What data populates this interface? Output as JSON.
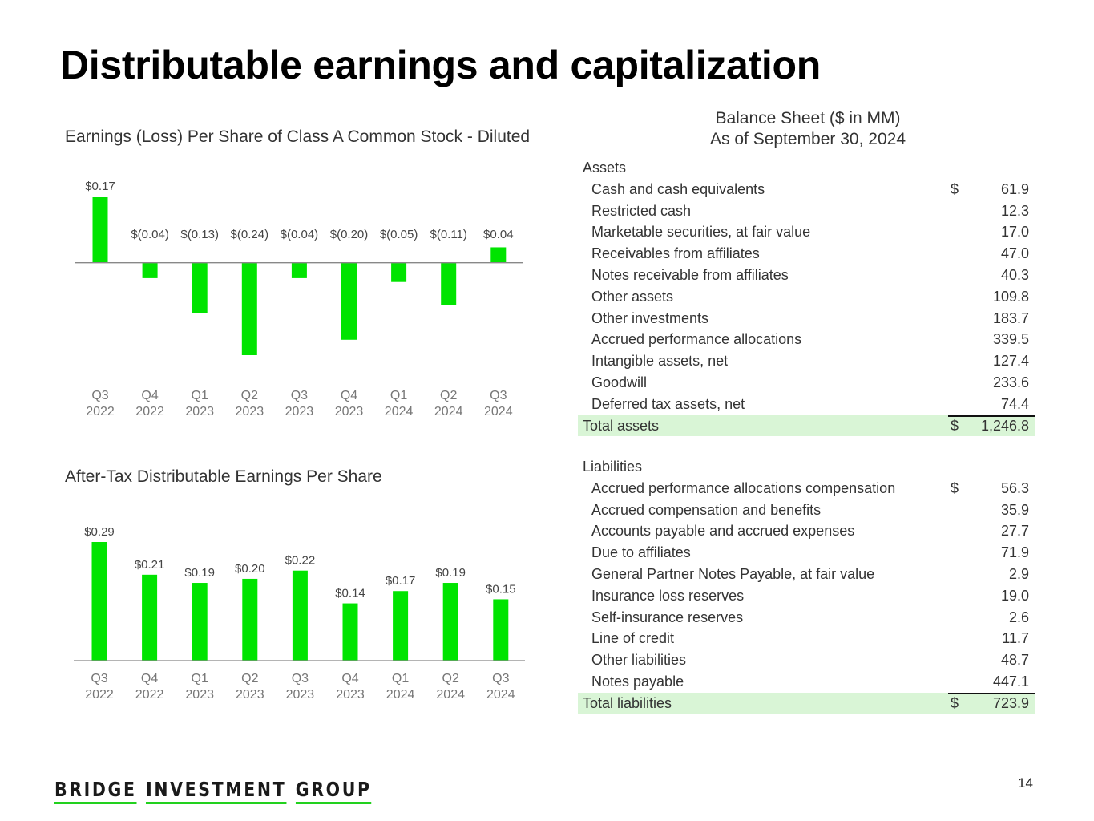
{
  "title": "Distributable earnings and capitalization",
  "colors": {
    "bar": "#00e400",
    "total_bg": "#d9f5d6",
    "logo_accent": "#22d11e"
  },
  "chart_data": [
    {
      "type": "bar",
      "title": "Earnings (Loss) Per Share of Class A Common Stock - Diluted",
      "categories": [
        "Q3 2022",
        "Q4 2022",
        "Q1 2023",
        "Q2 2023",
        "Q3 2023",
        "Q4 2023",
        "Q1 2024",
        "Q2 2024",
        "Q3 2024"
      ],
      "category_lines": [
        [
          "Q3",
          "2022"
        ],
        [
          "Q4",
          "2022"
        ],
        [
          "Q1",
          "2023"
        ],
        [
          "Q2",
          "2023"
        ],
        [
          "Q3",
          "2023"
        ],
        [
          "Q4",
          "2023"
        ],
        [
          "Q1",
          "2024"
        ],
        [
          "Q2",
          "2024"
        ],
        [
          "Q3",
          "2024"
        ]
      ],
      "values": [
        0.17,
        -0.04,
        -0.13,
        -0.24,
        -0.04,
        -0.2,
        -0.05,
        -0.11,
        0.04
      ],
      "data_labels": [
        "$0.17",
        "$(0.04)",
        "$(0.13)",
        "$(0.24)",
        "$(0.04)",
        "$(0.20)",
        "$(0.05)",
        "$(0.11)",
        "$0.04"
      ],
      "ylim": [
        -0.24,
        0.17
      ],
      "grid": false,
      "legend": "none"
    },
    {
      "type": "bar",
      "title": "After-Tax Distributable Earnings Per Share",
      "categories": [
        "Q3 2022",
        "Q4 2022",
        "Q1 2023",
        "Q2 2023",
        "Q3 2023",
        "Q4 2023",
        "Q1 2024",
        "Q2 2024",
        "Q3 2024"
      ],
      "category_lines": [
        [
          "Q3",
          "2022"
        ],
        [
          "Q4",
          "2022"
        ],
        [
          "Q1",
          "2023"
        ],
        [
          "Q2",
          "2023"
        ],
        [
          "Q3",
          "2023"
        ],
        [
          "Q4",
          "2023"
        ],
        [
          "Q1",
          "2024"
        ],
        [
          "Q2",
          "2024"
        ],
        [
          "Q3",
          "2024"
        ]
      ],
      "values": [
        0.29,
        0.21,
        0.19,
        0.2,
        0.22,
        0.14,
        0.17,
        0.19,
        0.15
      ],
      "data_labels": [
        "$0.29",
        "$0.21",
        "$0.19",
        "$0.20",
        "$0.22",
        "$0.14",
        "$0.17",
        "$0.19",
        "$0.15"
      ],
      "ylim": [
        0,
        0.29
      ],
      "grid": false,
      "legend": "none"
    }
  ],
  "balance_sheet": {
    "heading_line1": "Balance Sheet ($ in MM)",
    "heading_line2": "As of September 30, 2024",
    "assets": {
      "label": "Assets",
      "rows": [
        {
          "label": "Cash and cash equivalents",
          "currency": "$",
          "value": "61.9"
        },
        {
          "label": "Restricted cash",
          "currency": "",
          "value": "12.3"
        },
        {
          "label": "Marketable securities, at fair value",
          "currency": "",
          "value": "17.0"
        },
        {
          "label": "Receivables from affiliates",
          "currency": "",
          "value": "47.0"
        },
        {
          "label": "Notes receivable from affiliates",
          "currency": "",
          "value": "40.3"
        },
        {
          "label": "Other assets",
          "currency": "",
          "value": "109.8"
        },
        {
          "label": "Other investments",
          "currency": "",
          "value": "183.7"
        },
        {
          "label": "Accrued performance allocations",
          "currency": "",
          "value": "339.5"
        },
        {
          "label": "Intangible assets, net",
          "currency": "",
          "value": "127.4"
        },
        {
          "label": "Goodwill",
          "currency": "",
          "value": "233.6"
        },
        {
          "label": "Deferred tax assets, net",
          "currency": "",
          "value": "74.4"
        }
      ],
      "total": {
        "label": "Total assets",
        "currency": "$",
        "value": "1,246.8"
      }
    },
    "liabilities": {
      "label": "Liabilities",
      "rows": [
        {
          "label": "Accrued performance allocations compensation",
          "currency": "$",
          "value": "56.3"
        },
        {
          "label": "Accrued compensation and benefits",
          "currency": "",
          "value": "35.9"
        },
        {
          "label": "Accounts payable and accrued expenses",
          "currency": "",
          "value": "27.7"
        },
        {
          "label": "Due to affiliates",
          "currency": "",
          "value": "71.9"
        },
        {
          "label": "General Partner Notes Payable, at fair value",
          "currency": "",
          "value": "2.9"
        },
        {
          "label": "Insurance loss reserves",
          "currency": "",
          "value": "19.0"
        },
        {
          "label": "Self-insurance reserves",
          "currency": "",
          "value": "2.6"
        },
        {
          "label": "Line of credit",
          "currency": "",
          "value": "11.7"
        },
        {
          "label": "Other liabilities",
          "currency": "",
          "value": "48.7"
        },
        {
          "label": "Notes payable",
          "currency": "",
          "value": "447.1"
        }
      ],
      "total": {
        "label": "Total liabilities",
        "currency": "$",
        "value": "723.9"
      }
    }
  },
  "footer": {
    "logo_words": [
      "BRIDGE",
      "INVESTMENT",
      "GROUP"
    ],
    "page_number": "14"
  }
}
